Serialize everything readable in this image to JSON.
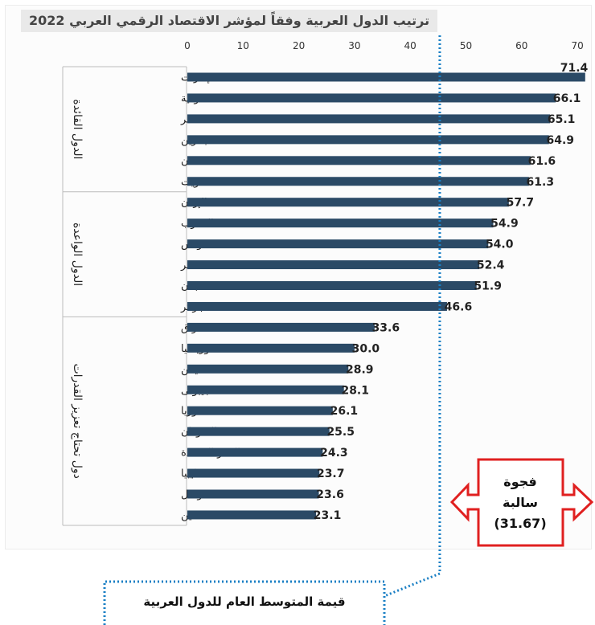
{
  "title": "ترتيب الدول العربية وفقاً لمؤشر الاقتصاد الرقمي العربي 2022",
  "chart_data": {
    "type": "bar",
    "orientation": "horizontal",
    "title": "ترتيب الدول العربية وفقاً لمؤشر الاقتصاد الرقمي العربي 2022",
    "xlim": [
      0,
      70
    ],
    "xticks": [
      0,
      10,
      20,
      30,
      40,
      50,
      60,
      70
    ],
    "bar_color": "#2b4a66",
    "categories": [
      "الإمارات",
      "السعودية",
      "قطر",
      "البحرين",
      "عمان",
      "الكويت",
      "الإردن",
      "المغرب",
      "تونس",
      "مصر",
      "لبنان",
      "الجزائر",
      "العراق",
      "موريتانيا",
      "اليمن",
      "جيبوتى",
      "سوريا",
      "السودان",
      "القمر المتحدة",
      "ليبيا",
      "الصومال",
      "فلسطين"
    ],
    "values": [
      71.4,
      66.1,
      65.1,
      64.9,
      61.6,
      61.3,
      57.7,
      54.9,
      54.0,
      52.4,
      51.9,
      46.6,
      33.6,
      30.0,
      28.9,
      28.1,
      26.1,
      25.5,
      24.3,
      23.7,
      23.6,
      23.1
    ],
    "value_labels": [
      "71.4",
      "66.1",
      "65.1",
      "64.9",
      "61.6",
      "61.3",
      "57.7",
      "54.9",
      "54.0",
      "52.4",
      "51.9",
      "46.6",
      "33.6",
      "30.0",
      "28.9",
      "28.1",
      "26.1",
      "25.5",
      "24.3",
      "23.7",
      "23.6",
      "23.1"
    ],
    "groups": [
      {
        "label": "الدول القائدة",
        "start": 0,
        "end": 5
      },
      {
        "label": "الدول الواعدة",
        "start": 6,
        "end": 11
      },
      {
        "label": "دول تحتاج تعزيز القدرات",
        "start": 12,
        "end": 21
      }
    ],
    "average_line": {
      "value": 45.3,
      "color": "#1a7fc4"
    }
  },
  "annotations": {
    "gap_lines": [
      "فجوة",
      "سالبة",
      "(31.67)"
    ],
    "gap_color": "#e02020",
    "average_label": "قيمة المتوسط العام للدول العربية"
  }
}
